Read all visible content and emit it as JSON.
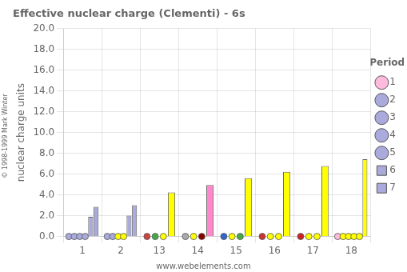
{
  "chart_data": {
    "type": "bar",
    "title": "Effective nuclear charge (Clementi) - 6s",
    "ylabel": "nuclear charge units",
    "legend_title": "Period",
    "annotations": [
      "www.webelements.com",
      "© 1998-1999 Mark Winter"
    ],
    "categories": [
      "1",
      "2",
      "13",
      "14",
      "15",
      "16",
      "17",
      "18"
    ],
    "series": [
      {
        "name": "1",
        "type": "scatter",
        "marker": "circle",
        "values": [
          null,
          null,
          null,
          null,
          null,
          null,
          null,
          0
        ],
        "colors": [
          null,
          null,
          null,
          null,
          null,
          null,
          null,
          "#ffbbdd"
        ]
      },
      {
        "name": "2",
        "type": "scatter",
        "marker": "circle",
        "values": [
          0,
          0,
          0,
          0,
          0,
          0,
          0,
          0
        ],
        "colors": [
          "#aaaadd",
          "#aaaadd",
          "#cc4444",
          "#aaaaaa",
          "#3366cc",
          "#cc3333",
          "#cc2222",
          "#ffff00"
        ]
      },
      {
        "name": "3",
        "type": "scatter",
        "marker": "circle",
        "values": [
          0,
          0,
          0,
          0,
          0,
          0,
          0,
          0
        ],
        "colors": [
          "#aaaadd",
          "#aaaadd",
          "#44aa44",
          "#ffff00",
          "#ffff00",
          "#ffff00",
          "#ffff00",
          "#ffff00"
        ]
      },
      {
        "name": "4",
        "type": "scatter",
        "marker": "circle",
        "values": [
          0,
          0,
          0,
          0,
          0,
          0,
          0,
          0
        ],
        "colors": [
          "#aaaadd",
          "#ffff00",
          "#ffff00",
          "#880000",
          "#44aa44",
          "#ffff00",
          "#ffff00",
          "#ffff00"
        ]
      },
      {
        "name": "5",
        "type": "scatter",
        "marker": "circle",
        "values": [
          0,
          0,
          null,
          null,
          null,
          null,
          null,
          0
        ],
        "colors": [
          "#aaaadd",
          "#ffff00",
          null,
          null,
          null,
          null,
          null,
          "#ffff00"
        ]
      },
      {
        "name": "6",
        "type": "bar",
        "values": [
          1.9,
          2.01,
          4.23,
          4.95,
          5.6,
          6.21,
          6.78,
          7.43
        ],
        "colors": [
          "#aaaadd",
          "#aaaadd",
          "#ffff00",
          "#ff88cc",
          "#ffff00",
          "#ffff00",
          "#ffff00",
          "#ffff00"
        ]
      },
      {
        "name": "7",
        "type": "bar",
        "values": [
          2.85,
          3.0,
          null,
          null,
          null,
          null,
          null,
          null
        ],
        "colors": [
          "#aaaadd",
          "#aaaadd",
          null,
          null,
          null,
          null,
          null,
          null
        ]
      }
    ],
    "ylim": [
      0,
      20
    ],
    "yticks": [
      {
        "value": 0,
        "label": "0.0"
      },
      {
        "value": 2,
        "label": "2.0"
      },
      {
        "value": 4,
        "label": "4.0"
      },
      {
        "value": 6,
        "label": "6.0"
      },
      {
        "value": 8,
        "label": "8.0"
      },
      {
        "value": 10,
        "label": "10.0"
      },
      {
        "value": 12,
        "label": "12.0"
      },
      {
        "value": 14,
        "label": "14.0"
      },
      {
        "value": 16,
        "label": "16.0"
      },
      {
        "value": 18,
        "label": "18.0"
      },
      {
        "value": 20,
        "label": "20.0"
      }
    ],
    "grid": true,
    "legend": "right"
  }
}
